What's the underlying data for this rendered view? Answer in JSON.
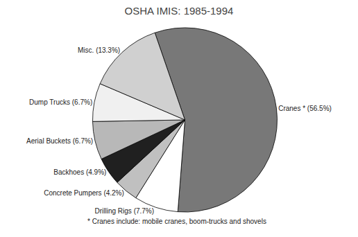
{
  "chart_data": {
    "type": "pie",
    "title": "OSHA IMIS: 1985-1994",
    "categories": [
      "Cranes * (56.5%)",
      "Drilling Rigs (7.7%)",
      "Concrete Pumpers (4.2%)",
      "Backhoes (4.9%)",
      "Aerial Buckets (6.7%)",
      "Dump Trucks (6.7%)",
      "Misc. (13.3%)"
    ],
    "values": [
      56.5,
      7.7,
      4.2,
      4.9,
      6.7,
      6.7,
      13.3
    ],
    "colors": [
      "#787878",
      "#ffffff",
      "#c0c0c0",
      "#202020",
      "#b8b8b8",
      "#f0f0f0",
      "#d0d0d0"
    ],
    "annotations": [
      "* Cranes include: mobile cranes, boom-trucks and shovels"
    ]
  }
}
